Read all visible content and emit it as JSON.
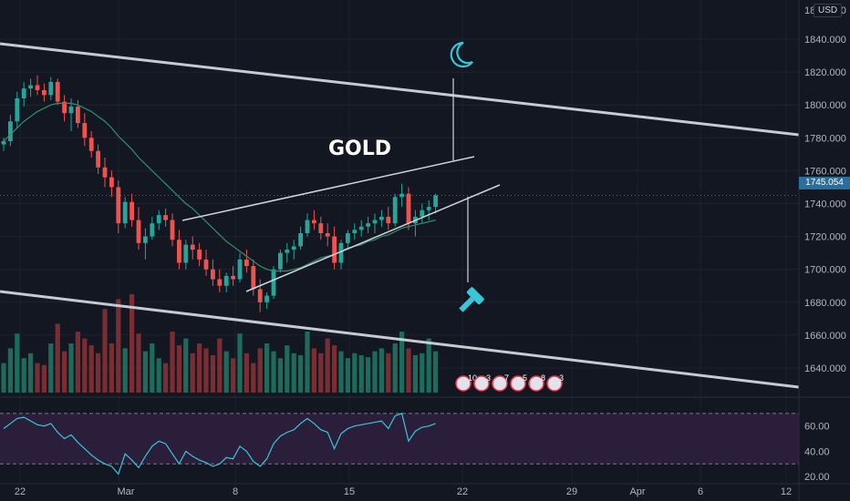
{
  "currency_badge": "USD",
  "current_price": "1745.054",
  "chart_data": {
    "type": "candlestick",
    "title": "GOLD",
    "y_axis": {
      "ticks": [
        "1640.000",
        "1660.000",
        "1680.000",
        "1700.000",
        "1720.000",
        "1740.000",
        "1760.000",
        "1780.000",
        "1800.000",
        "1820.000",
        "1840.000"
      ],
      "tick_values": [
        1640,
        1660,
        1680,
        1700,
        1720,
        1740,
        1760,
        1780,
        1800,
        1820,
        1840
      ],
      "partial_top_tick": "1860.000",
      "range": [
        1610,
        1865
      ]
    },
    "x_axis": {
      "labels": [
        "22",
        "Mar",
        "8",
        "15",
        "22",
        "29",
        "Apr",
        "6",
        "12"
      ]
    },
    "rsi": {
      "ticks": [
        "60.00",
        "40.00",
        "20.00"
      ],
      "tick_values": [
        60,
        40,
        20
      ],
      "band": [
        30,
        70
      ],
      "range": [
        15,
        80
      ]
    },
    "candles": [
      [
        1776,
        1780,
        1772,
        1778
      ],
      [
        1778,
        1794,
        1775,
        1790
      ],
      [
        1790,
        1808,
        1786,
        1804
      ],
      [
        1804,
        1814,
        1799,
        1810
      ],
      [
        1810,
        1816,
        1805,
        1812
      ],
      [
        1812,
        1818,
        1806,
        1809
      ],
      [
        1809,
        1813,
        1802,
        1806
      ],
      [
        1806,
        1817,
        1803,
        1814
      ],
      [
        1814,
        1816,
        1800,
        1802
      ],
      [
        1802,
        1806,
        1790,
        1795
      ],
      [
        1795,
        1804,
        1784,
        1799
      ],
      [
        1799,
        1803,
        1786,
        1789
      ],
      [
        1789,
        1795,
        1775,
        1780
      ],
      [
        1780,
        1784,
        1768,
        1772
      ],
      [
        1772,
        1776,
        1758,
        1762
      ],
      [
        1762,
        1768,
        1750,
        1756
      ],
      [
        1756,
        1760,
        1744,
        1750
      ],
      [
        1750,
        1754,
        1722,
        1728
      ],
      [
        1728,
        1744,
        1725,
        1741
      ],
      [
        1741,
        1746,
        1726,
        1730
      ],
      [
        1730,
        1738,
        1712,
        1716
      ],
      [
        1716,
        1725,
        1706,
        1720
      ],
      [
        1720,
        1732,
        1718,
        1728
      ],
      [
        1728,
        1736,
        1724,
        1733
      ],
      [
        1733,
        1737,
        1726,
        1730
      ],
      [
        1730,
        1734,
        1714,
        1718
      ],
      [
        1718,
        1724,
        1700,
        1704
      ],
      [
        1704,
        1718,
        1700,
        1715
      ],
      [
        1715,
        1720,
        1706,
        1712
      ],
      [
        1712,
        1716,
        1702,
        1706
      ],
      [
        1706,
        1712,
        1696,
        1700
      ],
      [
        1700,
        1706,
        1690,
        1694
      ],
      [
        1694,
        1700,
        1686,
        1690
      ],
      [
        1690,
        1698,
        1686,
        1696
      ],
      [
        1696,
        1702,
        1690,
        1694
      ],
      [
        1694,
        1710,
        1692,
        1706
      ],
      [
        1706,
        1712,
        1698,
        1702
      ],
      [
        1702,
        1706,
        1684,
        1688
      ],
      [
        1688,
        1694,
        1674,
        1680
      ],
      [
        1680,
        1686,
        1676,
        1684
      ],
      [
        1684,
        1702,
        1682,
        1700
      ],
      [
        1700,
        1712,
        1698,
        1710
      ],
      [
        1710,
        1716,
        1704,
        1712
      ],
      [
        1712,
        1718,
        1706,
        1714
      ],
      [
        1714,
        1726,
        1712,
        1722
      ],
      [
        1722,
        1734,
        1720,
        1730
      ],
      [
        1730,
        1736,
        1724,
        1728
      ],
      [
        1728,
        1732,
        1718,
        1722
      ],
      [
        1722,
        1728,
        1714,
        1720
      ],
      [
        1720,
        1726,
        1700,
        1704
      ],
      [
        1704,
        1718,
        1700,
        1716
      ],
      [
        1716,
        1724,
        1712,
        1722
      ],
      [
        1722,
        1728,
        1718,
        1724
      ],
      [
        1724,
        1730,
        1720,
        1726
      ],
      [
        1726,
        1732,
        1722,
        1728
      ],
      [
        1728,
        1734,
        1722,
        1730
      ],
      [
        1730,
        1736,
        1726,
        1732
      ],
      [
        1732,
        1738,
        1724,
        1728
      ],
      [
        1728,
        1746,
        1726,
        1744
      ],
      [
        1744,
        1752,
        1738,
        1746
      ],
      [
        1746,
        1750,
        1724,
        1728
      ],
      [
        1728,
        1736,
        1720,
        1732
      ],
      [
        1732,
        1740,
        1728,
        1736
      ],
      [
        1736,
        1742,
        1730,
        1738
      ],
      [
        1738,
        1746,
        1734,
        1745
      ]
    ],
    "sma": [
      1778,
      1782,
      1786,
      1790,
      1793,
      1796,
      1798,
      1800,
      1801,
      1801,
      1801,
      1800,
      1798,
      1796,
      1793,
      1790,
      1786,
      1781,
      1777,
      1773,
      1768,
      1764,
      1760,
      1756,
      1752,
      1748,
      1744,
      1740,
      1737,
      1733,
      1729,
      1725,
      1721,
      1717,
      1714,
      1711,
      1708,
      1705,
      1702,
      1700,
      1699,
      1699,
      1699,
      1700,
      1701,
      1703,
      1705,
      1707,
      1708,
      1709,
      1711,
      1713,
      1714,
      1715,
      1717,
      1718,
      1720,
      1721,
      1723,
      1725,
      1726,
      1727,
      1728,
      1729,
      1730
    ],
    "rsi_values": [
      58,
      62,
      66,
      67,
      64,
      61,
      60,
      62,
      55,
      50,
      53,
      47,
      42,
      37,
      33,
      30,
      28,
      22,
      38,
      33,
      27,
      36,
      44,
      48,
      46,
      38,
      30,
      40,
      36,
      33,
      31,
      28,
      30,
      35,
      34,
      44,
      40,
      32,
      28,
      34,
      46,
      52,
      55,
      57,
      62,
      66,
      62,
      57,
      55,
      42,
      54,
      58,
      60,
      61,
      62,
      63,
      64,
      58,
      68,
      70,
      48,
      56,
      59,
      60,
      62
    ],
    "volume": [
      0.3,
      0.45,
      0.6,
      0.35,
      0.4,
      0.3,
      0.28,
      0.5,
      0.7,
      0.42,
      0.5,
      0.62,
      0.55,
      0.48,
      0.4,
      0.85,
      0.5,
      0.95,
      0.45,
      1.0,
      0.6,
      0.42,
      0.5,
      0.35,
      0.3,
      0.62,
      0.48,
      0.55,
      0.4,
      0.5,
      0.45,
      0.38,
      0.55,
      0.42,
      0.35,
      0.6,
      0.4,
      0.3,
      0.45,
      0.5,
      0.42,
      0.35,
      0.48,
      0.4,
      0.38,
      0.62,
      0.45,
      0.4,
      0.55,
      0.48,
      0.42,
      0.35,
      0.4,
      0.38,
      0.36,
      0.42,
      0.45,
      0.4,
      0.5,
      0.62,
      0.45,
      0.38,
      0.4,
      0.55,
      0.42
    ],
    "event_markers": [
      "10",
      "3",
      "7",
      "5",
      "8",
      "3"
    ]
  }
}
